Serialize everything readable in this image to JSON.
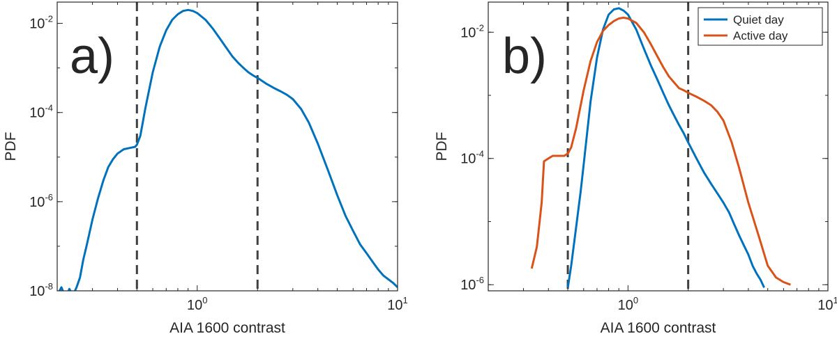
{
  "colors": {
    "quiet": "#0072BD",
    "active": "#D95319",
    "threshold": "#404040",
    "axis": "#262626"
  },
  "chart_data": [
    {
      "type": "line",
      "panel_label": "a)",
      "xlabel": "AIA 1600 contrast",
      "ylabel": "PDF",
      "xscale": "log",
      "yscale": "log",
      "xlim": [
        0.2,
        10
      ],
      "ylim": [
        1e-08,
        0.03
      ],
      "xticks": [
        {
          "base": "10",
          "exp": "0"
        },
        {
          "base": "10",
          "exp": "1"
        }
      ],
      "yticks": [
        {
          "base": "10",
          "exp": "-8"
        },
        {
          "base": "10",
          "exp": "-6"
        },
        {
          "base": "10",
          "exp": "-4"
        },
        {
          "base": "10",
          "exp": "-2"
        }
      ],
      "threshold_lines": [
        0.5,
        2.0
      ],
      "grid": false,
      "series": [
        {
          "x": [
            0.2,
            0.21,
            0.22,
            0.23,
            0.24,
            0.25,
            0.26,
            0.27,
            0.28,
            0.3,
            0.32,
            0.34,
            0.36,
            0.38,
            0.4,
            0.43,
            0.46,
            0.49,
            0.5,
            0.52,
            0.55,
            0.6,
            0.65,
            0.7,
            0.75,
            0.8,
            0.85,
            0.9,
            0.95,
            1.0,
            1.1,
            1.2,
            1.3,
            1.4,
            1.5,
            1.6,
            1.7,
            1.8,
            1.9,
            2.0,
            2.2,
            2.4,
            2.6,
            2.8,
            3.0,
            3.3,
            3.6,
            4.0,
            4.5,
            5.0,
            5.5,
            6.0,
            6.5,
            7.0,
            7.5,
            8.0,
            8.5,
            9.0,
            9.5,
            10.0
          ],
          "y": [
            8e-09,
            1.2e-08,
            7e-09,
            1.1e-08,
            8e-09,
            1.2e-08,
            2e-08,
            5e-08,
            1e-07,
            4e-07,
            1.2e-06,
            3e-06,
            6e-06,
            9e-06,
            1.2e-05,
            1.5e-05,
            1.6e-05,
            1.7e-05,
            1.9e-05,
            3e-05,
            0.00012,
            0.0008,
            0.003,
            0.007,
            0.012,
            0.016,
            0.019,
            0.02,
            0.019,
            0.017,
            0.012,
            0.0075,
            0.0045,
            0.0028,
            0.0018,
            0.0013,
            0.001,
            0.0008,
            0.00068,
            0.0006,
            0.00045,
            0.00036,
            0.0003,
            0.00025,
            0.0002,
            0.00012,
            6e-05,
            2e-05,
            5e-06,
            1.4e-06,
            4.8e-07,
            2.2e-07,
            1.1e-07,
            7e-08,
            4.5e-08,
            3e-08,
            2.2e-08,
            1.8e-08,
            1.5e-08,
            1.2e-08
          ]
        }
      ]
    },
    {
      "type": "line",
      "panel_label": "b)",
      "xlabel": "AIA 1600 contrast",
      "ylabel": "PDF",
      "xscale": "log",
      "yscale": "log",
      "xlim": [
        0.2,
        10
      ],
      "ylim": [
        8e-07,
        0.03
      ],
      "xticks": [
        {
          "base": "10",
          "exp": "0"
        },
        {
          "base": "10",
          "exp": "1"
        }
      ],
      "yticks": [
        {
          "base": "10",
          "exp": "-6"
        },
        {
          "base": "10",
          "exp": "-4"
        },
        {
          "base": "10",
          "exp": "-2"
        }
      ],
      "threshold_lines": [
        0.5,
        2.0
      ],
      "grid": false,
      "legend": {
        "position": "top-right"
      },
      "series": [
        {
          "name": "Quiet day",
          "color_key": "quiet",
          "x": [
            0.5,
            0.52,
            0.55,
            0.58,
            0.6,
            0.65,
            0.7,
            0.75,
            0.8,
            0.85,
            0.9,
            0.95,
            1.0,
            1.1,
            1.2,
            1.3,
            1.4,
            1.5,
            1.6,
            1.7,
            1.8,
            1.9,
            2.0,
            2.2,
            2.4,
            2.6,
            2.8,
            3.0,
            3.2,
            3.4,
            3.6,
            3.8,
            4.0,
            4.2,
            4.4,
            4.6,
            4.8
          ],
          "y": [
            9e-07,
            2e-06,
            8e-06,
            3e-05,
            8e-05,
            0.0008,
            0.004,
            0.011,
            0.019,
            0.023,
            0.024,
            0.022,
            0.019,
            0.011,
            0.0055,
            0.003,
            0.0018,
            0.0011,
            0.0007,
            0.00048,
            0.00034,
            0.00025,
            0.00018,
            0.0001,
            6e-05,
            4e-05,
            2.8e-05,
            2e-05,
            1.4e-05,
            9e-06,
            6e-06,
            4.2e-06,
            3e-06,
            2e-06,
            1.5e-06,
            1.2e-06,
            9e-07
          ]
        },
        {
          "name": "Active day",
          "color_key": "active",
          "x": [
            0.33,
            0.35,
            0.37,
            0.38,
            0.4,
            0.42,
            0.45,
            0.48,
            0.5,
            0.52,
            0.55,
            0.6,
            0.65,
            0.7,
            0.75,
            0.8,
            0.85,
            0.9,
            0.95,
            1.0,
            1.1,
            1.2,
            1.3,
            1.4,
            1.5,
            1.6,
            1.7,
            1.8,
            1.9,
            2.0,
            2.2,
            2.4,
            2.6,
            2.8,
            3.0,
            3.3,
            3.6,
            4.0,
            4.5,
            5.0,
            5.5,
            6.0,
            6.5
          ],
          "y": [
            1.8e-06,
            4e-06,
            2e-05,
            9e-05,
            0.0001,
            0.00011,
            0.00011,
            0.00011,
            0.00012,
            0.00015,
            0.0003,
            0.0012,
            0.0035,
            0.007,
            0.0105,
            0.013,
            0.015,
            0.0165,
            0.017,
            0.0165,
            0.014,
            0.01,
            0.0065,
            0.0042,
            0.0028,
            0.002,
            0.0016,
            0.0013,
            0.0012,
            0.0011,
            0.00095,
            0.00082,
            0.0007,
            0.00055,
            0.0004,
            0.00018,
            7e-05,
            2e-05,
            6e-06,
            2e-06,
            1.3e-06,
            1.1e-06,
            1e-06
          ]
        }
      ]
    }
  ]
}
